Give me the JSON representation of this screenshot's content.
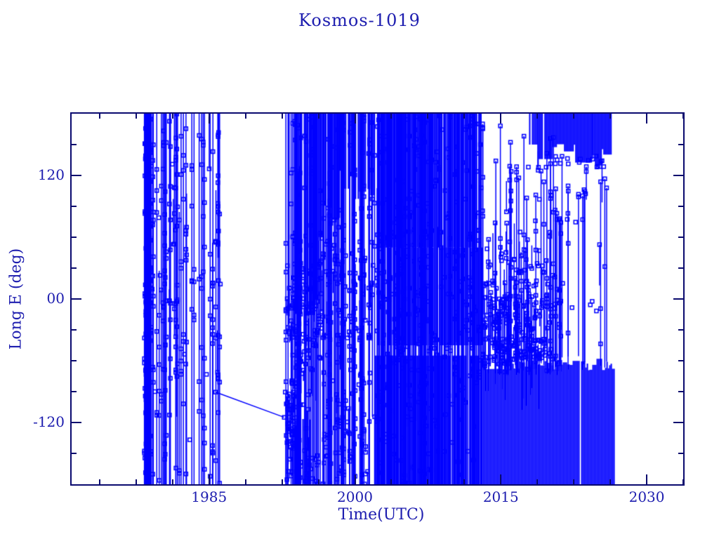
{
  "page": {
    "background": "#ffffff",
    "description": "Plotter-style ground-track longitude history chart for a satellite"
  },
  "chart_data": {
    "type": "scatter",
    "title": "Kosmos-1019",
    "xlabel": "Time(UTC)",
    "ylabel": "Long E (deg)",
    "xlim": [
      1970.87,
      2033.75
    ],
    "ylim": [
      -180,
      180
    ],
    "x_major_ticks": [
      1985,
      2000,
      2015,
      2030
    ],
    "x_major_labels": [
      "1985",
      "2000",
      "2015",
      "2030"
    ],
    "x_minor_step": 3.75,
    "y_major_ticks": [
      120,
      0,
      -120
    ],
    "y_major_labels": [
      "120",
      "00",
      "-120"
    ],
    "y_minor_step": 30,
    "grid": false,
    "legend": null,
    "marker": "open-square",
    "marker_size": 5,
    "colors": {
      "data": "#0000ff",
      "axis": "#0a0a6e",
      "text": "#1d1daf"
    },
    "series_description": "Single series: East longitude (deg, -180..180) of Kosmos-1019 vs time. Dense vertical lines are longitude wrap-arounds between samples; small open squares are data points. Activity eras: 1978.3-1986.3 scattered drift lines; one slow drift segment from (1985.7,-91) to (1992.7,-115); 1992.7-2002 dense upper-longitude residence with lower scatter; 2002-2013 near-solid coverage; 2013-2026.7 solid band -60..-180 deg plus mid-longitude clusters; 2018.8-2026.3 solid band 130..180 deg; no data after 2026.8.",
    "segments": [
      {
        "type": "vlines",
        "n": 28,
        "x": [
          1978.35,
          1979.15
        ],
        "y": [
          180,
          -180
        ],
        "markers": [
          2,
          6
        ],
        "partial": 0.1
      },
      {
        "type": "vlines",
        "n": 36,
        "x": [
          1979.2,
          1986.25
        ],
        "y": [
          180,
          -180
        ],
        "markers": [
          3,
          8
        ],
        "partial": 0.3
      },
      {
        "type": "cluster",
        "n": 25,
        "x": [
          1978.4,
          1986.2
        ],
        "y": [
          170,
          -150
        ],
        "stub": 0.3
      },
      {
        "type": "vlines",
        "n": 2,
        "x": [
          1985.9,
          1986.3
        ],
        "y": [
          180,
          40
        ],
        "markers": [
          1,
          2
        ],
        "partial": 0
      },
      {
        "type": "polyline",
        "points": [
          [
            1985.68,
            -90.5
          ],
          [
            1992.73,
            -115
          ]
        ],
        "markers": true
      },
      {
        "type": "vlines",
        "n": 85,
        "x": [
          1992.75,
          2001.9
        ],
        "y": [
          180,
          -180
        ],
        "markers": [
          2,
          5
        ],
        "partial": 0.2
      },
      {
        "type": "block",
        "x": [
          1993.0,
          1996.3
        ],
        "y": [
          180,
          -25
        ],
        "slit": 0.18,
        "jb": 45
      },
      {
        "type": "block",
        "x": [
          1996.3,
          1998.4
        ],
        "y": [
          180,
          60
        ],
        "slit": 0.25,
        "jb": 35
      },
      {
        "type": "block",
        "x": [
          1998.4,
          2001.9
        ],
        "y": [
          180,
          95
        ],
        "slit": 0.3,
        "jb": 30
      },
      {
        "type": "block",
        "x": [
          1992.85,
          1995.5
        ],
        "y": [
          -95,
          -180
        ],
        "slit": 0.25,
        "jt": 40
      },
      {
        "type": "cluster",
        "n": 90,
        "x": [
          1992.9,
          1996.6
        ],
        "y": [
          40,
          -70
        ],
        "stub": 0.4
      },
      {
        "type": "cluster",
        "n": 55,
        "x": [
          1992.8,
          2001.9
        ],
        "y": [
          -60,
          -180
        ],
        "stub": 0.35
      },
      {
        "type": "cluster",
        "n": 35,
        "x": [
          1992.8,
          1994.0
        ],
        "y": [
          -75,
          -140
        ],
        "stub": 0.3
      },
      {
        "type": "cluster",
        "n": 40,
        "x": [
          1996.5,
          2001.9
        ],
        "y": [
          60,
          -40
        ],
        "stub": 0.35
      },
      {
        "type": "vlines",
        "n": 140,
        "x": [
          2001.9,
          2013.0
        ],
        "y": [
          180,
          -180
        ],
        "markers": [
          1,
          4
        ],
        "partial": 0.1
      },
      {
        "type": "block",
        "x": [
          2002.3,
          2013.0
        ],
        "y": [
          180,
          50
        ],
        "slit": 0.06
      },
      {
        "type": "block",
        "x": [
          2002.3,
          2013.0
        ],
        "y": [
          50,
          -45
        ],
        "slit": 0.14
      },
      {
        "type": "block",
        "x": [
          2001.9,
          2013.0
        ],
        "y": [
          -55,
          -180
        ],
        "slit": 0.12
      },
      {
        "type": "cluster",
        "n": 30,
        "x": [
          2002.0,
          2013.0
        ],
        "y": [
          60,
          -60
        ],
        "stub": 0.3
      },
      {
        "type": "block",
        "x": [
          2013.0,
          2026.7
        ],
        "y": [
          -58,
          -180
        ],
        "slit": 0.04,
        "jt": 12
      },
      {
        "type": "vlines2",
        "n": 40,
        "x": [
          2013.1,
          2021.2
        ],
        "ytop": [
          180,
          -10
        ],
        "ybot": [
          -75,
          -60
        ],
        "markers": [
          1,
          3
        ]
      },
      {
        "type": "vlines2",
        "n": 10,
        "x": [
          2021.2,
          2026.5
        ],
        "ytop": [
          140,
          100
        ],
        "ybot": [
          -70,
          -55
        ],
        "markers": [
          0,
          2
        ]
      },
      {
        "type": "vlines2",
        "n": 30,
        "x": [
          2013.1,
          2018.8
        ],
        "ytop": [
          5,
          -30
        ],
        "ybot": [
          -75,
          -62
        ],
        "markers": [
          0,
          2
        ]
      },
      {
        "type": "cluster",
        "n": 110,
        "x": [
          2013.1,
          2019.9
        ],
        "y": [
          50,
          -60
        ],
        "stub": 0.5
      },
      {
        "type": "cluster",
        "n": 70,
        "x": [
          2014.3,
          2019.6
        ],
        "y": [
          -38,
          -60
        ],
        "stub": 0.3
      },
      {
        "type": "cluster",
        "n": 26,
        "x": [
          2015.5,
          2025.6
        ],
        "y": [
          130,
          -35
        ],
        "stub": 0.2
      },
      {
        "type": "block",
        "x": [
          2018.75,
          2026.35
        ],
        "y": [
          180,
          128
        ],
        "slit": 0.03,
        "jb": 24
      },
      {
        "type": "block",
        "x": [
          2017.9,
          2018.75
        ],
        "y": [
          180,
          150
        ],
        "slit": 0.45
      },
      {
        "type": "cluster",
        "n": 20,
        "x": [
          2018.8,
          2026.3
        ],
        "y": [
          125,
          140
        ],
        "stub": 0.15
      }
    ]
  }
}
